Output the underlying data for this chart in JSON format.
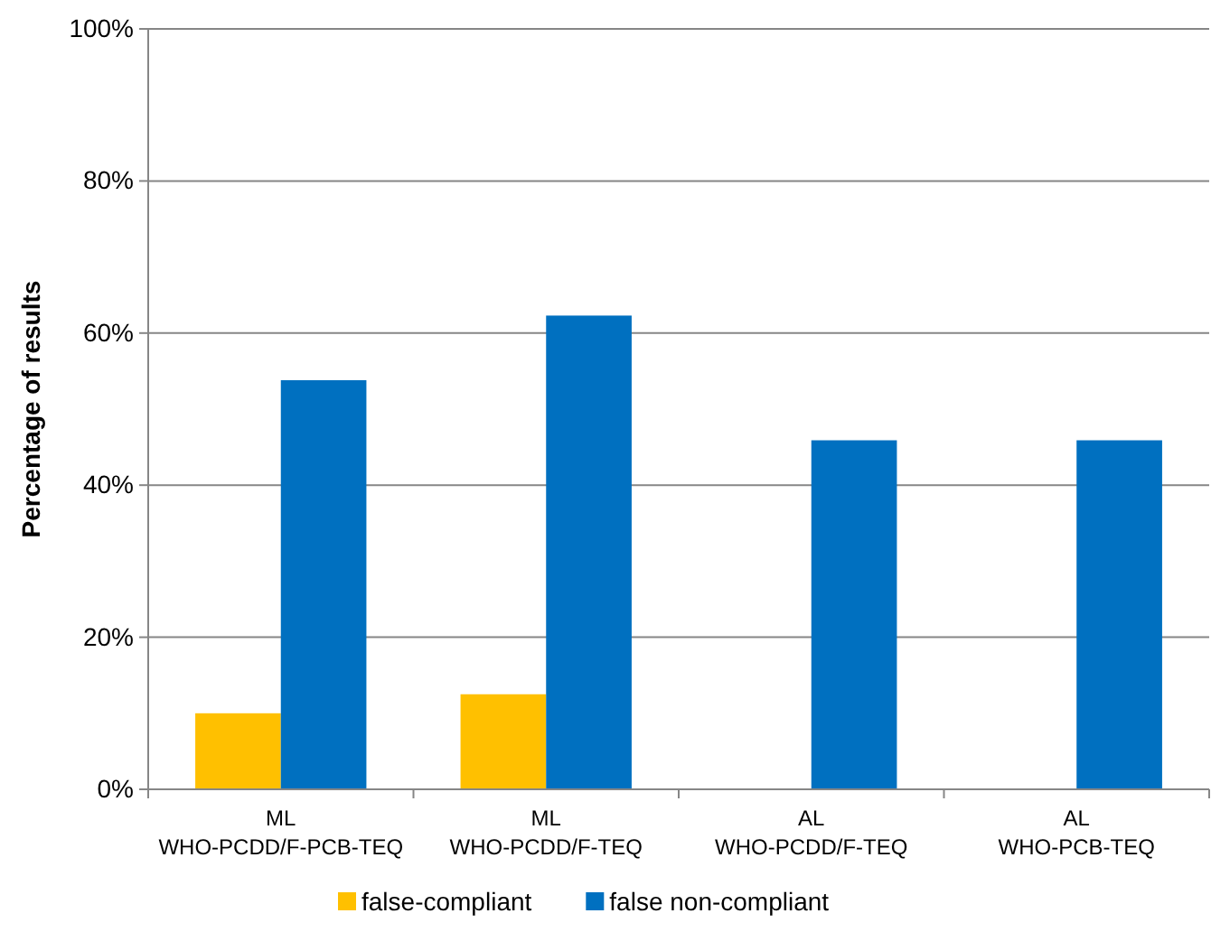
{
  "chart_data": {
    "type": "bar",
    "ylabel": "Percentage of results",
    "categories": [
      "ML\nWHO-PCDD/F-PCB-TEQ",
      "ML\nWHO-PCDD/F-TEQ",
      "AL\nWHO-PCDD/F-TEQ",
      "AL\nWHO-PCB-TEQ"
    ],
    "series": [
      {
        "name": "false-compliant",
        "color": "#ffc000",
        "values": [
          10,
          12.5,
          0,
          0
        ]
      },
      {
        "name": "false non-compliant",
        "color": "#0070c0",
        "values": [
          53.8,
          62.3,
          45.9,
          45.9
        ]
      }
    ],
    "ylim": [
      0,
      100
    ],
    "yticks": [
      {
        "value": 0,
        "label": "0%"
      },
      {
        "value": 20,
        "label": "20%"
      },
      {
        "value": 40,
        "label": "40%"
      },
      {
        "value": 60,
        "label": "60%"
      },
      {
        "value": 80,
        "label": "80%"
      },
      {
        "value": 100,
        "label": "100%"
      }
    ],
    "grid": "y",
    "legend": "bottom"
  }
}
